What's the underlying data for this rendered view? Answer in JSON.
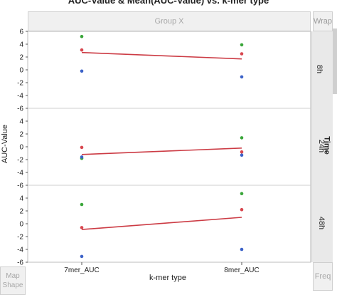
{
  "title": "AUC-Value & Mean(AUC-Value) vs. k-mer type",
  "drop_zones": {
    "group_x": "Group X",
    "wrap": "Wrap",
    "map_shape": "Map Shape",
    "freq": "Freq"
  },
  "group_y_title": "Time",
  "colors": {
    "series_red": "#d8474f",
    "series_green": "#3aa63a",
    "series_blue": "#3c62c8",
    "mean_line": "#cc3b44",
    "grid": "#cfcfcf"
  },
  "chart_data": {
    "type": "scatter",
    "title": "AUC-Value & Mean(AUC-Value) vs. k-mer type",
    "xlabel": "k-mer type",
    "ylabel": "AUC-Value",
    "categories": [
      "7mer_AUC",
      "8mer_AUC"
    ],
    "ylim": [
      -6,
      6
    ],
    "yticks": [
      6,
      4,
      2,
      0,
      -2,
      -4,
      -6
    ],
    "grid": "horizontal panel separators only",
    "group_by": "Time",
    "panels": [
      {
        "label": "8h",
        "points": {
          "green": [
            5.2,
            3.9
          ],
          "red": [
            3.1,
            2.5
          ],
          "blue": [
            -0.2,
            -1.1
          ]
        },
        "mean": [
          2.7,
          1.7
        ]
      },
      {
        "label": "24h",
        "points": {
          "green": [
            -1.8,
            1.4
          ],
          "red": [
            -0.1,
            -0.8
          ],
          "blue": [
            -1.6,
            -1.3
          ]
        },
        "mean": [
          -1.2,
          -0.2
        ]
      },
      {
        "label": "48h",
        "points": {
          "green": [
            3.0,
            4.7
          ],
          "red": [
            -0.6,
            2.2
          ],
          "blue": [
            -5.1,
            -4.0
          ]
        },
        "mean": [
          -0.9,
          1.0
        ]
      }
    ]
  }
}
